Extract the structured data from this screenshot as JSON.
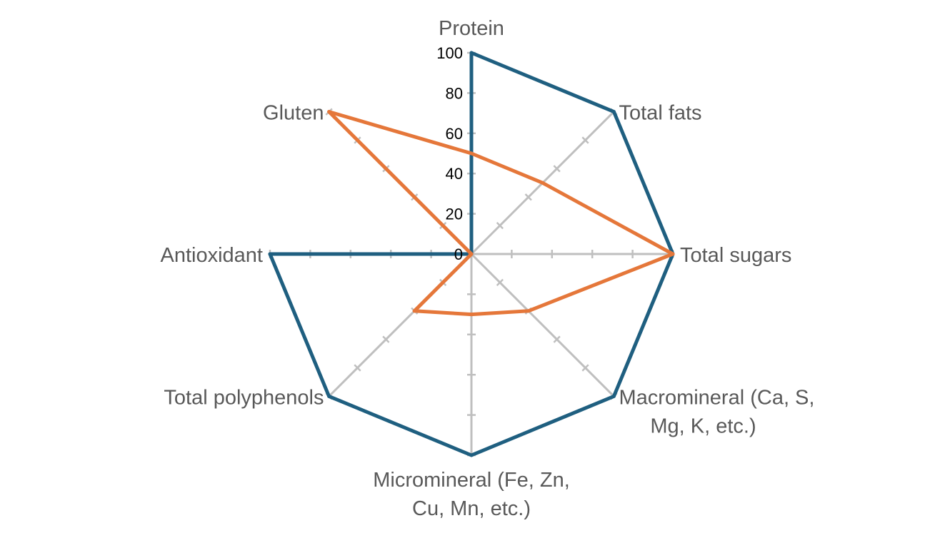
{
  "chart_data": {
    "type": "radar",
    "categories": [
      "Protein",
      "Total fats",
      "Total sugars",
      "Macromineral (Ca, S, Mg, K, etc.)",
      "Micromineral (Fe, Zn, Cu, Mn, etc.)",
      "Total polyphenols",
      "Antioxidant",
      "Gluten"
    ],
    "category_label_lines": [
      [
        "Protein"
      ],
      [
        "Total fats"
      ],
      [
        "Total sugars"
      ],
      [
        "Macromineral (Ca, S,",
        "Mg, K, etc.)"
      ],
      [
        "Micromineral (Fe, Zn,",
        "Cu, Mn, etc.)"
      ],
      [
        "Total polyphenols"
      ],
      [
        "Antioxidant"
      ],
      [
        "Gluten"
      ]
    ],
    "series": [
      {
        "values": [
          100,
          100,
          100,
          100,
          100,
          100,
          100,
          0
        ],
        "color": "#1f5f80"
      },
      {
        "values": [
          50,
          50,
          100,
          40,
          30,
          40,
          0,
          100
        ],
        "color": "#e5773a"
      }
    ],
    "ticks": [
      "0",
      "20",
      "40",
      "60",
      "80",
      "100"
    ],
    "tick_values": [
      0,
      20,
      40,
      60,
      80,
      100
    ],
    "rlim": [
      0,
      100
    ],
    "grid": true,
    "legend": "none",
    "colors": {
      "axis": "#bfbfbf",
      "label": "#595959",
      "tick": "#000000"
    }
  }
}
